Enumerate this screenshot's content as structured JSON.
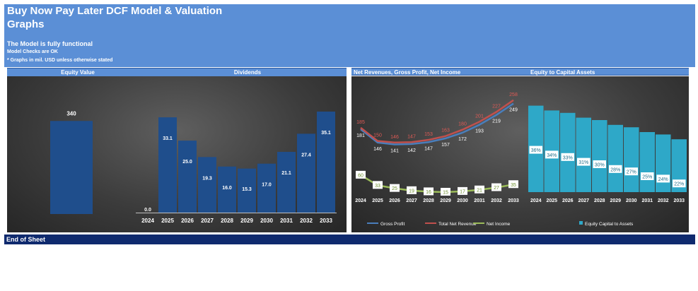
{
  "header": {
    "title": "Buy Now Pay Later DCF Model & Valuation",
    "section": "Graphs",
    "status_main": "The Model is fully functional",
    "status_checks": "Model Checks are OK",
    "status_units": "* Graphs in mil. USD unless otherwise stated"
  },
  "panels": {
    "equity_value": "Equity Value",
    "dividends": "Dividends",
    "net_revenues": "Net Revenues, Gross Profit, Net Income",
    "equity_capital": "Equity to Capital Assets"
  },
  "footer": {
    "label": "End of Sheet"
  },
  "colors": {
    "header_blue": "#5b8fd6",
    "bar_navy": "#1f4e8c",
    "gross_profit": "#4a7ebb",
    "total_net_revenue": "#c0504d",
    "net_income": "#9bbb59",
    "equity_ratio": "#2ea8c8",
    "footer_navy": "#0f2a6e"
  },
  "chart_data": [
    {
      "type": "bar",
      "title": "Equity Value",
      "categories": [
        ""
      ],
      "values": [
        340
      ],
      "ylim": [
        0,
        400
      ]
    },
    {
      "type": "bar",
      "title": "Dividends",
      "categories": [
        "2024",
        "2025",
        "2026",
        "2027",
        "2028",
        "2029",
        "2030",
        "2031",
        "2032",
        "2033"
      ],
      "values": [
        0.0,
        33.1,
        25.0,
        19.3,
        16.0,
        15.3,
        17.0,
        21.1,
        27.4,
        35.1
      ],
      "labels": [
        "0.0",
        "33.1",
        "25.0",
        "19.3",
        "16.0",
        "15.3",
        "17.0",
        "21.1",
        "27.4",
        "35.1"
      ],
      "ylim": [
        0,
        40
      ]
    },
    {
      "type": "line",
      "title": "Net Revenues, Gross Profit, Net Income",
      "categories": [
        "2024",
        "2025",
        "2026",
        "2027",
        "2028",
        "2029",
        "2030",
        "2031",
        "2032",
        "2033"
      ],
      "series": [
        {
          "name": "Gross Profit",
          "values": [
            181,
            146,
            141,
            142,
            147,
            157,
            172,
            193,
            219,
            249
          ]
        },
        {
          "name": "Total Net Revenue",
          "values": [
            185,
            150,
            146,
            147,
            153,
            163,
            180,
            201,
            227,
            258
          ]
        },
        {
          "name": "Net Income",
          "values": [
            60,
            33,
            25,
            19,
            16,
            15,
            17,
            21,
            27,
            35
          ]
        }
      ],
      "ylim": [
        0,
        280
      ],
      "legend": "bottom"
    },
    {
      "type": "bar",
      "title": "Equity to Capital Assets",
      "categories": [
        "2024",
        "2025",
        "2026",
        "2027",
        "2028",
        "2029",
        "2030",
        "2031",
        "2032",
        "2033"
      ],
      "series": [
        {
          "name": "Equity Capital to Assets",
          "values": [
            36,
            34,
            33,
            31,
            30,
            28,
            27,
            25,
            24,
            22
          ]
        }
      ],
      "labels": [
        "36%",
        "34%",
        "33%",
        "31%",
        "30%",
        "28%",
        "27%",
        "25%",
        "24%",
        "22%"
      ],
      "ylim": [
        0,
        40
      ],
      "legend": "bottom"
    }
  ]
}
